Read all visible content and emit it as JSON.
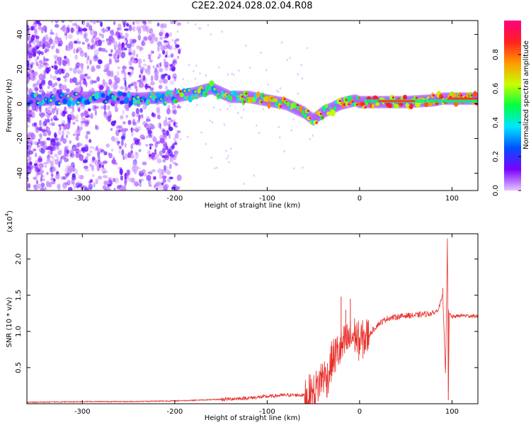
{
  "title": "C2E2.2024.028.02.04.R08",
  "chart_data": [
    {
      "type": "heatmap",
      "xlabel": "Height of straight line (km)",
      "ylabel": "Frequency (Hz)",
      "xlim": [
        -360,
        128
      ],
      "ylim": [
        -50,
        48
      ],
      "xticks": [
        -300,
        -200,
        -100,
        0,
        100
      ],
      "xtick_labels": [
        "-300",
        "-200",
        "-100",
        "0",
        "100"
      ],
      "yticks": [
        -40,
        -20,
        0,
        20,
        40
      ],
      "ytick_labels": [
        "-40",
        "-20",
        "0",
        "20",
        "40"
      ],
      "colorbar": {
        "label": "Normalized spectral amplitude",
        "range": [
          0.0,
          1.0
        ],
        "ticks": [
          0.0,
          0.2,
          0.4,
          0.6,
          0.8
        ],
        "tick_labels": [
          "0.0",
          "0.2",
          "0.4",
          "0.6",
          "0.8"
        ],
        "colors": [
          "#e6c8ff",
          "#7a00ff",
          "#0050ff",
          "#00e5ff",
          "#00ff40",
          "#c8ff00",
          "#ff9900",
          "#ff2020",
          "#ff0080"
        ]
      },
      "ridge": {
        "x": [
          -350,
          -320,
          -280,
          -240,
          -200,
          -180,
          -160,
          -140,
          -120,
          -100,
          -80,
          -60,
          -50,
          -40,
          -20,
          -5,
          0,
          20,
          50,
          80,
          90,
          110,
          128
        ],
        "y": [
          2,
          3,
          4,
          3,
          4,
          6,
          9,
          4,
          4,
          2,
          0,
          -5,
          -9,
          -5,
          0,
          2,
          1,
          1,
          1,
          2,
          3,
          3,
          3
        ]
      },
      "grid": false,
      "legend": "none"
    },
    {
      "type": "line",
      "xlabel": "Height of straight line (km)",
      "ylabel": "SNR (10 * v/v)",
      "scale_note": "(x10",
      "scale_exp": "4",
      "scale_close": ")",
      "xlim": [
        -360,
        128
      ],
      "ylim": [
        0,
        2.35
      ],
      "xticks": [
        -300,
        -200,
        -100,
        0,
        100
      ],
      "xtick_labels": [
        "-300",
        "-200",
        "-100",
        "0",
        "100"
      ],
      "yticks": [
        0.5,
        1.0,
        1.5,
        2.0
      ],
      "ytick_labels": [
        "0.5",
        "1.0",
        "1.5",
        "2.0"
      ],
      "color": "#e8302a",
      "x": [
        -360,
        -300,
        -250,
        -200,
        -150,
        -120,
        -100,
        -80,
        -60,
        -50,
        -45,
        -40,
        -35,
        -30,
        -25,
        -20,
        -15,
        -10,
        -5,
        0,
        5,
        10,
        20,
        30,
        40,
        50,
        60,
        70,
        80,
        85,
        90,
        93,
        95,
        96,
        97,
        100,
        110,
        128
      ],
      "y": [
        0.02,
        0.03,
        0.03,
        0.04,
        0.06,
        0.08,
        0.1,
        0.12,
        0.12,
        0.14,
        0.25,
        0.4,
        0.35,
        0.6,
        0.7,
        0.75,
        0.85,
        0.9,
        0.95,
        0.85,
        0.9,
        0.95,
        1.1,
        1.18,
        1.2,
        1.22,
        1.22,
        1.24,
        1.25,
        1.3,
        1.5,
        0.4,
        2.3,
        0.1,
        1.25,
        1.2,
        1.22,
        1.21
      ],
      "spikes": [
        {
          "x": -20,
          "y": 1.48
        },
        {
          "x": -15,
          "y": 1.3
        },
        {
          "x": -10,
          "y": 1.45
        },
        {
          "x": 90,
          "y": 1.6
        },
        {
          "x": 95,
          "y": 2.3
        }
      ],
      "grid": false,
      "legend": "none"
    }
  ]
}
